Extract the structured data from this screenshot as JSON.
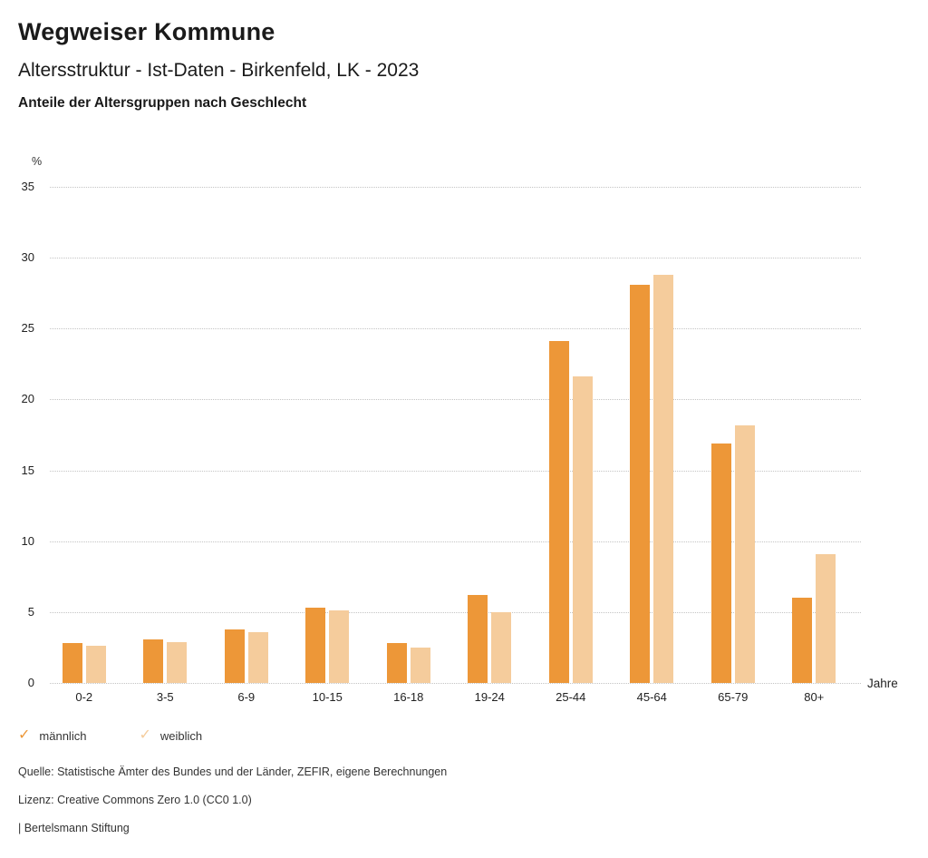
{
  "header": {
    "title": "Wegweiser Kommune",
    "subtitle": "Altersstruktur - Ist-Daten - Birkenfeld, LK - 2023",
    "subsubtitle": "Anteile der Altersgruppen nach Geschlecht"
  },
  "chart_data": {
    "type": "bar",
    "title": "Anteile der Altersgruppen nach Geschlecht",
    "ylabel": "%",
    "xlabel": "Jahre",
    "ylim": [
      0,
      35
    ],
    "ytick_step": 5,
    "grid": "horizontal-dotted",
    "legend_position": "bottom-left",
    "categories": [
      "0-2",
      "3-5",
      "6-9",
      "10-15",
      "16-18",
      "19-24",
      "25-44",
      "45-64",
      "65-79",
      "80+"
    ],
    "series": [
      {
        "name": "männlich",
        "color": "#ED9738",
        "values": [
          2.8,
          3.1,
          3.8,
          5.3,
          2.8,
          6.2,
          24.1,
          28.1,
          16.9,
          6.0
        ]
      },
      {
        "name": "weiblich",
        "color": "#F5CC9C",
        "values": [
          2.6,
          2.9,
          3.6,
          5.1,
          2.5,
          5.0,
          21.6,
          28.8,
          18.2,
          9.1
        ]
      }
    ]
  },
  "legend": {
    "check_icon": "✓",
    "items": [
      {
        "label": "männlich",
        "color": "#ED9738"
      },
      {
        "label": "weiblich",
        "color": "#F5CC9C"
      }
    ]
  },
  "footer": {
    "source": "Quelle: Statistische Ämter des Bundes und der Länder, ZEFIR, eigene Berechnungen",
    "license": "Lizenz: Creative Commons Zero 1.0 (CC0 1.0)",
    "brand": "| Bertelsmann Stiftung"
  }
}
